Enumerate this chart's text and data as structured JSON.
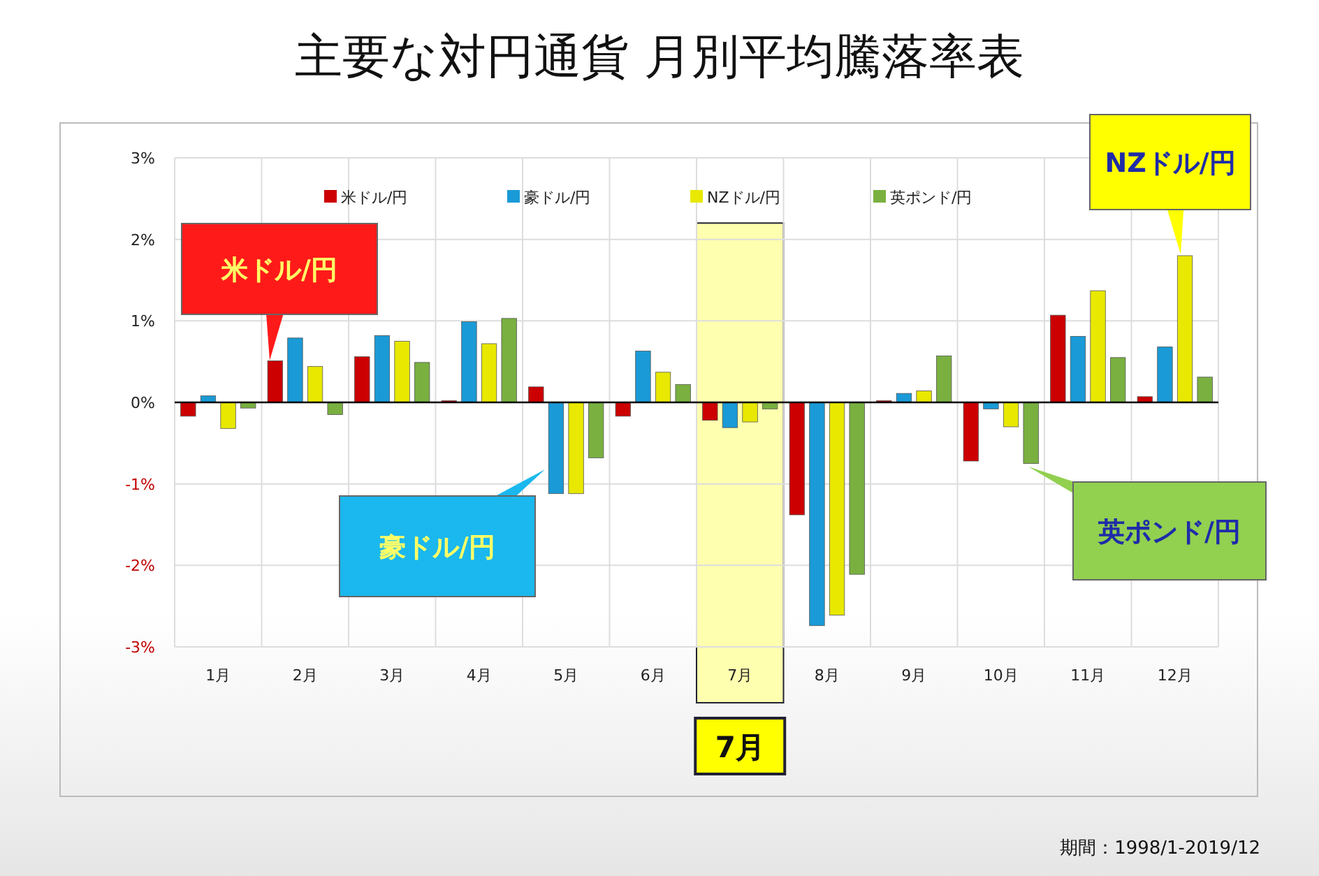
{
  "chart_data": {
    "type": "bar",
    "title": "主要な対円通貨 月別平均騰落率表",
    "categories": [
      "1月",
      "2月",
      "3月",
      "4月",
      "5月",
      "6月",
      "7月",
      "8月",
      "9月",
      "10月",
      "11月",
      "12月"
    ],
    "series": [
      {
        "name": "米ドル/円",
        "color": "#cc0000",
        "values": [
          -0.17,
          0.51,
          0.56,
          0.02,
          0.19,
          -0.17,
          -0.22,
          -1.38,
          0.02,
          -0.72,
          1.07,
          0.07
        ]
      },
      {
        "name": "豪ドル/円",
        "color": "#1a9ad6",
        "values": [
          0.08,
          0.79,
          0.82,
          0.99,
          -1.12,
          0.63,
          -0.31,
          -2.74,
          0.11,
          -0.08,
          0.81,
          0.68
        ]
      },
      {
        "name": "NZドル/円",
        "color": "#e8e800",
        "values": [
          -0.32,
          0.44,
          0.75,
          0.72,
          -1.12,
          0.37,
          -0.24,
          -2.61,
          0.14,
          -0.3,
          1.37,
          1.8
        ]
      },
      {
        "name": "英ポンド/円",
        "color": "#79b040",
        "values": [
          -0.07,
          -0.15,
          0.49,
          1.03,
          -0.68,
          0.22,
          -0.08,
          -2.11,
          0.57,
          -0.75,
          0.55,
          0.31
        ]
      }
    ],
    "ylim": [
      -3,
      3
    ],
    "yticks": [
      {
        "value": -3,
        "label": "-3%"
      },
      {
        "value": -2,
        "label": "-2%"
      },
      {
        "value": -1,
        "label": "-1%"
      },
      {
        "value": 0,
        "label": "0%"
      },
      {
        "value": 1,
        "label": "1%"
      },
      {
        "value": 2,
        "label": "2%"
      },
      {
        "value": 3,
        "label": "3%"
      }
    ],
    "grid": true,
    "legend": "top",
    "bands": [
      {
        "axis": "x",
        "from": "7月",
        "to": "7月",
        "label": "7月",
        "color": "#ffffb0"
      }
    ],
    "annotations": [
      "米ドル/円",
      "豪ドル/円",
      "NZドル/円",
      "英ポンド/円",
      "期間：1998/1-2019/12"
    ]
  }
}
